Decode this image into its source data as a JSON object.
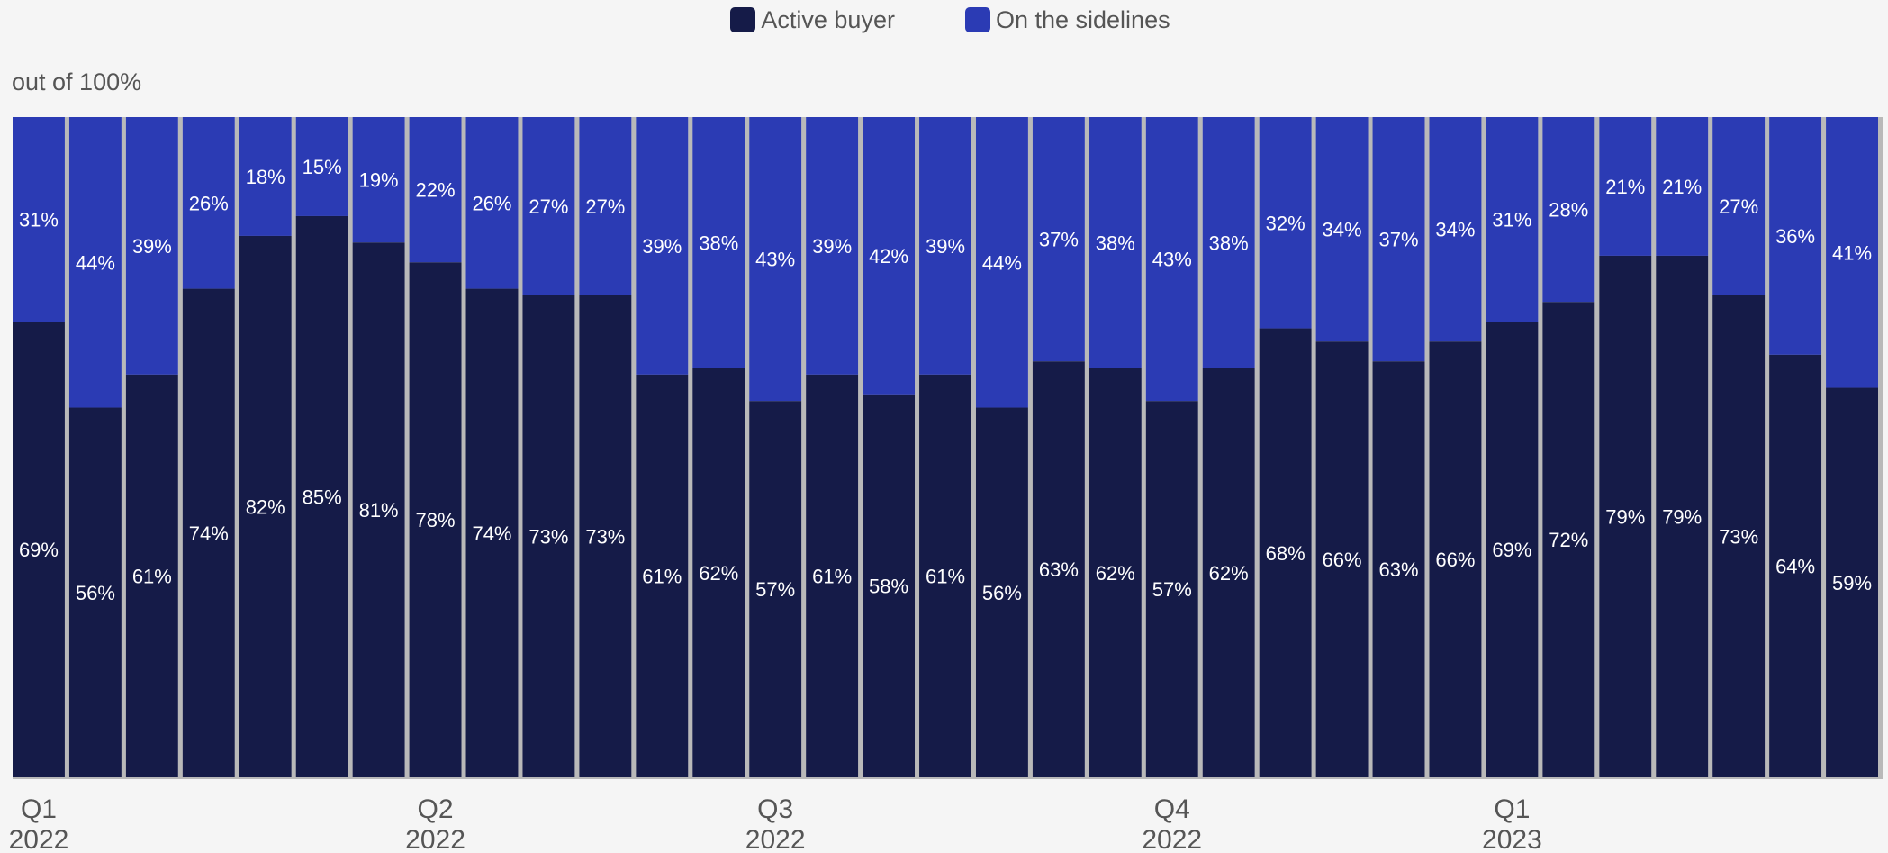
{
  "legend": {
    "items": [
      {
        "label": "Active buyer",
        "color": "#151b48"
      },
      {
        "label": "On the sidelines",
        "color": "#2b3bb4"
      }
    ]
  },
  "unit_label": "out of 100%",
  "chart_data": {
    "type": "bar",
    "stacked": true,
    "ylim": [
      0,
      100
    ],
    "grid": false,
    "legend_position": "top-center",
    "x_tick_labels": [
      {
        "index": 0,
        "line1": "Q1",
        "line2": "2022"
      },
      {
        "index": 7,
        "line1": "Q2",
        "line2": "2022"
      },
      {
        "index": 13,
        "line1": "Q3",
        "line2": "2022"
      },
      {
        "index": 20,
        "line1": "Q4",
        "line2": "2022"
      },
      {
        "index": 26,
        "line1": "Q1",
        "line2": "2023"
      }
    ],
    "series": [
      {
        "name": "Active buyer",
        "color": "#151b48",
        "values": [
          69,
          56,
          61,
          74,
          82,
          85,
          81,
          78,
          74,
          73,
          73,
          61,
          62,
          57,
          61,
          58,
          61,
          56,
          63,
          62,
          57,
          62,
          68,
          66,
          63,
          66,
          69,
          72,
          79,
          79,
          73,
          64,
          59
        ]
      },
      {
        "name": "On the sidelines",
        "color": "#2b3bb4",
        "values": [
          31,
          44,
          39,
          26,
          18,
          15,
          19,
          22,
          26,
          27,
          27,
          39,
          38,
          43,
          39,
          42,
          39,
          44,
          37,
          38,
          43,
          38,
          32,
          34,
          37,
          34,
          31,
          28,
          21,
          21,
          27,
          36,
          41
        ]
      }
    ]
  }
}
